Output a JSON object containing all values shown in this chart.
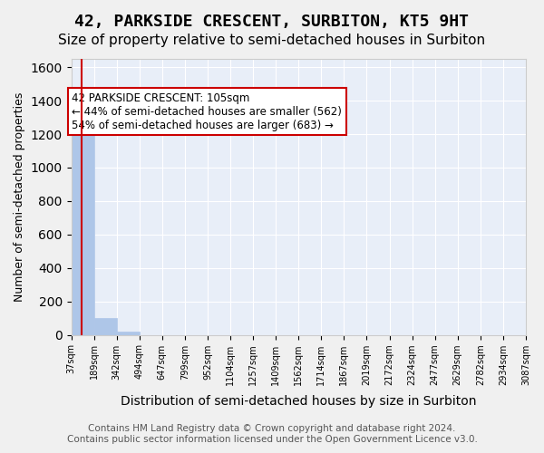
{
  "title": "42, PARKSIDE CRESCENT, SURBITON, KT5 9HT",
  "subtitle": "Size of property relative to semi-detached houses in Surbiton",
  "xlabel": "Distribution of semi-detached houses by size in Surbiton",
  "ylabel": "Number of semi-detached properties",
  "bins": [
    "37sqm",
    "189sqm",
    "342sqm",
    "494sqm",
    "647sqm",
    "799sqm",
    "952sqm",
    "1104sqm",
    "1257sqm",
    "1409sqm",
    "1562sqm",
    "1714sqm",
    "1867sqm",
    "2019sqm",
    "2172sqm",
    "2324sqm",
    "2477sqm",
    "2629sqm",
    "2782sqm",
    "2934sqm",
    "3087sqm"
  ],
  "bin_edges": [
    37,
    189,
    342,
    494,
    647,
    799,
    952,
    1104,
    1257,
    1409,
    1562,
    1714,
    1867,
    2019,
    2172,
    2324,
    2477,
    2629,
    2782,
    2934,
    3087
  ],
  "values": [
    1245,
    100,
    20,
    0,
    0,
    0,
    0,
    0,
    0,
    0,
    0,
    0,
    0,
    0,
    0,
    0,
    0,
    0,
    0,
    0
  ],
  "bar_color": "#aec6e8",
  "bar_edgecolor": "#aec6e8",
  "redline_x": 105,
  "redline_color": "#cc0000",
  "annotation_text": "42 PARKSIDE CRESCENT: 105sqm\n← 44% of semi-detached houses are smaller (562)\n54% of semi-detached houses are larger (683) →",
  "annotation_box_edgecolor": "#cc0000",
  "annotation_box_facecolor": "#ffffff",
  "ylim": [
    0,
    1650
  ],
  "yticks": [
    0,
    200,
    400,
    600,
    800,
    1000,
    1200,
    1400,
    1600
  ],
  "background_color": "#e8eef8",
  "grid_color": "#ffffff",
  "footer_line1": "Contains HM Land Registry data © Crown copyright and database right 2024.",
  "footer_line2": "Contains public sector information licensed under the Open Government Licence v3.0.",
  "title_fontsize": 13,
  "subtitle_fontsize": 11,
  "xlabel_fontsize": 10,
  "ylabel_fontsize": 9,
  "footer_fontsize": 7.5,
  "annotation_fontsize": 8.5
}
